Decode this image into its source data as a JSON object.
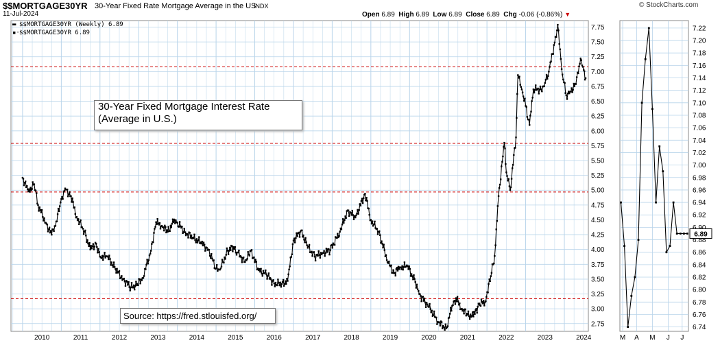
{
  "header": {
    "symbol": "$$MORTGAGE30YR",
    "description": "30-Year Fixed Rate Mortgage Average in the US",
    "index_tag": "INDX",
    "date": "11-Jul-2024",
    "brand": "© StockCharts.com",
    "open_label": "Open",
    "open": "6.89",
    "high_label": "High",
    "high": "6.89",
    "low_label": "Low",
    "low": "6.89",
    "close_label": "Close",
    "close": "6.89",
    "chg_label": "Chg",
    "chg": "-0.06 (-0.86%)",
    "down_arrow": "▼"
  },
  "legend": {
    "line1": "$$MORTGAGE30YR (Weekly) 6.89",
    "line2": "$$MORTGAGE30YR 6.89"
  },
  "annotations": {
    "title_line1": "30-Year Fixed Mortgage Interest Rate",
    "title_line2": "(Average in U.S.)",
    "source": "Source: https://fred.stlouisfed.org/"
  },
  "colors": {
    "line": "#000000",
    "grid": "#b8d4ea",
    "reference_line": "#cc0000",
    "down_arrow": "#cc0000",
    "panel_border": "#888888"
  },
  "chart_data": [
    {
      "type": "line",
      "title": "",
      "series": [
        {
          "name": "$$MORTGAGE30YR (Weekly)",
          "x": [
            2010.0,
            2010.15,
            2010.3,
            2010.4,
            2010.6,
            2010.75,
            2010.85,
            2011.0,
            2011.1,
            2011.25,
            2011.4,
            2011.6,
            2011.75,
            2011.9,
            2012.0,
            2012.2,
            2012.4,
            2012.6,
            2012.8,
            2012.95,
            2013.1,
            2013.3,
            2013.45,
            2013.6,
            2013.75,
            2013.9,
            2014.0,
            2014.2,
            2014.4,
            2014.6,
            2014.8,
            2015.0,
            2015.1,
            2015.3,
            2015.45,
            2015.55,
            2015.75,
            2015.9,
            2016.1,
            2016.3,
            2016.5,
            2016.7,
            2016.85,
            2017.0,
            2017.2,
            2017.35,
            2017.55,
            2017.75,
            2017.95,
            2018.2,
            2018.4,
            2018.6,
            2018.85,
            2019.0,
            2019.2,
            2019.45,
            2019.6,
            2019.75,
            2019.95,
            2020.15,
            2020.25,
            2020.5,
            2020.75,
            2020.95,
            2021.1,
            2021.2,
            2021.35,
            2021.5,
            2021.65,
            2021.8,
            2021.95,
            2022.1,
            2022.2,
            2022.3,
            2022.45,
            2022.5,
            2022.6,
            2022.75,
            2022.8,
            2022.9,
            2023.0,
            2023.1,
            2023.2,
            2023.4,
            2023.5,
            2023.6,
            2023.75,
            2023.83,
            2023.95,
            2024.05,
            2024.15,
            2024.3,
            2024.42,
            2024.5,
            2024.55
          ],
          "y": [
            5.21,
            4.98,
            5.1,
            4.75,
            4.45,
            4.25,
            4.4,
            4.85,
            5.03,
            4.9,
            4.55,
            4.3,
            4.0,
            4.1,
            3.88,
            3.88,
            3.67,
            3.5,
            3.36,
            3.4,
            3.52,
            3.93,
            4.46,
            4.4,
            4.3,
            4.46,
            4.45,
            4.29,
            4.2,
            4.12,
            4.0,
            3.68,
            3.66,
            3.98,
            4.04,
            3.95,
            3.79,
            3.98,
            3.65,
            3.58,
            3.43,
            3.42,
            3.47,
            4.15,
            4.32,
            4.07,
            3.88,
            3.94,
            3.99,
            4.3,
            4.66,
            4.54,
            4.94,
            4.5,
            4.3,
            3.77,
            3.6,
            3.7,
            3.72,
            3.45,
            3.25,
            3.03,
            2.77,
            2.67,
            3.05,
            3.18,
            3.0,
            2.9,
            2.87,
            3.09,
            3.11,
            3.55,
            3.89,
            4.9,
            5.8,
            5.3,
            5.0,
            5.89,
            6.94,
            6.7,
            6.42,
            6.1,
            6.7,
            6.7,
            6.81,
            7.0,
            7.49,
            7.79,
            6.95,
            6.6,
            6.66,
            6.79,
            7.22,
            7.03,
            6.89
          ]
        }
      ],
      "x_tick_labels": [
        "2010",
        "2011",
        "2012",
        "2013",
        "2014",
        "2015",
        "2016",
        "2017",
        "2018",
        "2019",
        "2020",
        "2021",
        "2022",
        "2023",
        "2024"
      ],
      "y_tick_labels": [
        "2.75",
        "3.00",
        "3.25",
        "3.50",
        "3.75",
        "4.00",
        "4.25",
        "4.50",
        "4.75",
        "5.00",
        "5.25",
        "5.50",
        "5.75",
        "6.00",
        "6.25",
        "6.50",
        "6.75",
        "7.00",
        "7.25",
        "7.50",
        "7.75"
      ],
      "ylim": [
        2.62,
        7.86
      ],
      "reference_lines": [
        7.08,
        5.79,
        4.97,
        3.17
      ],
      "grid": true
    },
    {
      "type": "line",
      "title": "",
      "series": [
        {
          "name": "$$MORTGAGE30YR",
          "x": [
            0,
            1,
            2,
            3,
            4,
            5,
            6,
            7,
            8,
            9,
            10,
            11,
            12,
            13,
            14,
            15,
            16,
            17,
            18,
            19
          ],
          "y": [
            6.94,
            6.87,
            6.74,
            6.79,
            6.82,
            6.88,
            7.1,
            7.17,
            7.22,
            7.09,
            6.94,
            7.03,
            6.99,
            6.86,
            6.87,
            6.94,
            6.89,
            6.89,
            6.89,
            6.89
          ]
        }
      ],
      "x_tick_labels": [
        "M",
        "A",
        "M",
        "J",
        "J"
      ],
      "y_tick_labels": [
        "6.74",
        "6.76",
        "6.78",
        "6.80",
        "6.82",
        "6.84",
        "6.86",
        "6.88",
        "6.90",
        "6.92",
        "6.94",
        "6.96",
        "6.98",
        "7.00",
        "7.02",
        "7.04",
        "7.06",
        "7.08",
        "7.10",
        "7.12",
        "7.14",
        "7.16",
        "7.18",
        "7.20",
        "7.22"
      ],
      "ylim": [
        6.733,
        7.232
      ],
      "last_value_label": "6.89",
      "grid": true
    }
  ]
}
